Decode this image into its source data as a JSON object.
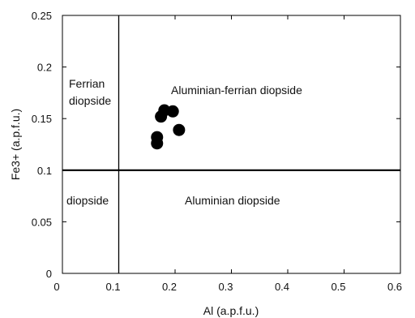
{
  "chart_data": {
    "type": "scatter",
    "xlabel": "Al (a.p.f.u.)",
    "ylabel": "Fe3+ (a.p.f.u.)",
    "xlim": [
      0,
      0.6
    ],
    "ylim": [
      0,
      0.25
    ],
    "xticks": [
      "0",
      "0.1",
      "0.2",
      "0.3",
      "0.4",
      "0.5",
      "0.6"
    ],
    "yticks": [
      "0",
      "0.05",
      "0.1",
      "0.15",
      "0.2",
      "0.25"
    ],
    "grid": false,
    "divider_lines": {
      "x": 0.1,
      "y": 0.1
    },
    "region_labels": {
      "ferrian_diopside_line1": "Ferrian",
      "ferrian_diopside_line2": "diopside",
      "aluminian_ferrian_diopside": "Aluminian-ferrian diopside",
      "diopside": "diopside",
      "aluminian_diopside": "Aluminian diopside"
    },
    "series": [
      {
        "points": [
          {
            "x": 0.168,
            "y": 0.126
          },
          {
            "x": 0.168,
            "y": 0.132
          },
          {
            "x": 0.175,
            "y": 0.152
          },
          {
            "x": 0.181,
            "y": 0.158
          },
          {
            "x": 0.196,
            "y": 0.157
          },
          {
            "x": 0.207,
            "y": 0.139
          }
        ]
      }
    ]
  }
}
